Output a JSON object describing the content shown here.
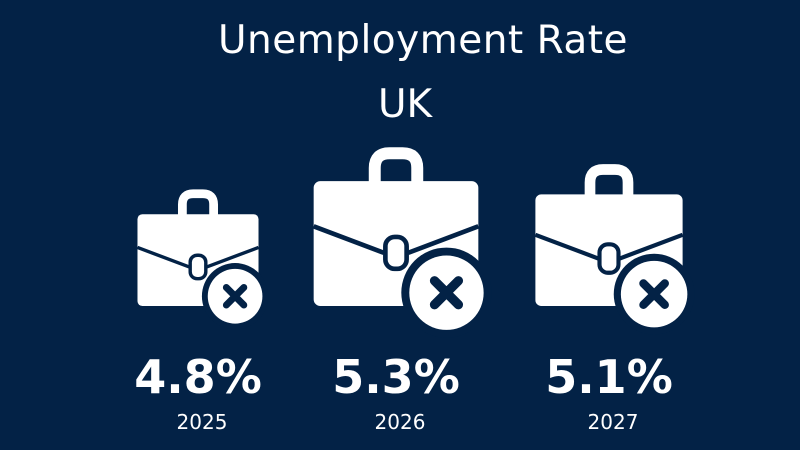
{
  "title": "Unemployment Rate",
  "subtitle": "UK",
  "colors": {
    "background": "#032246",
    "foreground": "#ffffff"
  },
  "icon_name": "briefcase-x-icon",
  "chart_data": {
    "type": "pictogram",
    "title": "Unemployment Rate",
    "subtitle": "UK",
    "categories": [
      "2025",
      "2026",
      "2027"
    ],
    "values": [
      4.8,
      5.3,
      5.1
    ],
    "value_labels": [
      "4.8%",
      "5.3%",
      "5.1%"
    ]
  }
}
